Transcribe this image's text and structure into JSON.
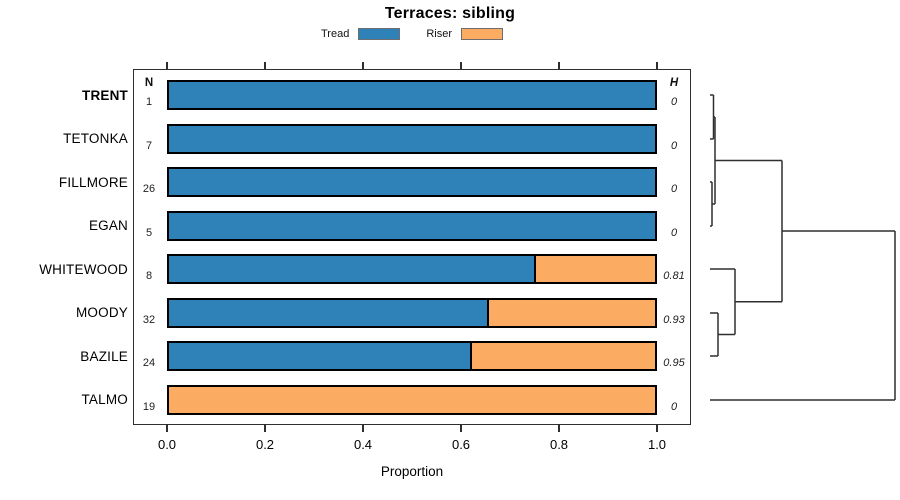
{
  "title": "Terraces: sibling",
  "legend": {
    "items": [
      {
        "label": "Tread",
        "color": "#2E82B8"
      },
      {
        "label": "Riser",
        "color": "#FBAC62"
      }
    ]
  },
  "columns": {
    "n": "N",
    "h": "H"
  },
  "axis": {
    "xlabel": "Proportion",
    "ticks": [
      "0.0",
      "0.2",
      "0.4",
      "0.6",
      "0.8",
      "1.0"
    ],
    "xlim": [
      0,
      1
    ]
  },
  "chart_data": {
    "type": "bar",
    "orientation": "horizontal",
    "stacked": true,
    "title": "Terraces: sibling",
    "xlabel": "Proportion",
    "xlim": [
      0,
      1
    ],
    "categories": [
      "TRENT",
      "TETONKA",
      "FILLMORE",
      "EGAN",
      "WHITEWOOD",
      "MOODY",
      "BAZILE",
      "TALMO"
    ],
    "emphasized_category": "TRENT",
    "n_values": [
      "1",
      "7",
      "26",
      "5",
      "8",
      "32",
      "24",
      "19"
    ],
    "h_values": [
      "0",
      "0",
      "0",
      "0",
      "0.81",
      "0.93",
      "0.95",
      "0"
    ],
    "series": [
      {
        "name": "Tread",
        "color": "#2E82B8",
        "values": [
          1,
          1,
          1,
          1,
          0.75,
          0.655,
          0.62,
          0
        ]
      },
      {
        "name": "Riser",
        "color": "#FBAC62",
        "values": [
          0,
          0,
          0,
          0,
          0.25,
          0.345,
          0.38,
          1
        ]
      }
    ],
    "dendrogram": {
      "side": "right",
      "structure": "((((TRENT,TETONKA),(FILLMORE,EGAN)),(WHITEWOOD,(MOODY,BAZILE))),TALMO)",
      "segments": [
        [
          5,
          40,
          8.5,
          40
        ],
        [
          8.5,
          40,
          8.5,
          84
        ],
        [
          5,
          84,
          8.5,
          84
        ],
        [
          5,
          127,
          7,
          127
        ],
        [
          7,
          127,
          7,
          171
        ],
        [
          5,
          171,
          7,
          171
        ],
        [
          8.5,
          62,
          10,
          62
        ],
        [
          10,
          62,
          10,
          149
        ],
        [
          7,
          149,
          10,
          149
        ],
        [
          10,
          105.5,
          77,
          105.5
        ],
        [
          5,
          258,
          13,
          258
        ],
        [
          13,
          258,
          13,
          301
        ],
        [
          5,
          301,
          13,
          301
        ],
        [
          5,
          214,
          30,
          214
        ],
        [
          13,
          279.5,
          30,
          279.5
        ],
        [
          30,
          214,
          30,
          279.5
        ],
        [
          30,
          246.8,
          77,
          246.8
        ],
        [
          77,
          105.5,
          77,
          246.8
        ],
        [
          77,
          176,
          190,
          176
        ],
        [
          5,
          345,
          190,
          345
        ],
        [
          190,
          176,
          190,
          345
        ]
      ]
    }
  }
}
